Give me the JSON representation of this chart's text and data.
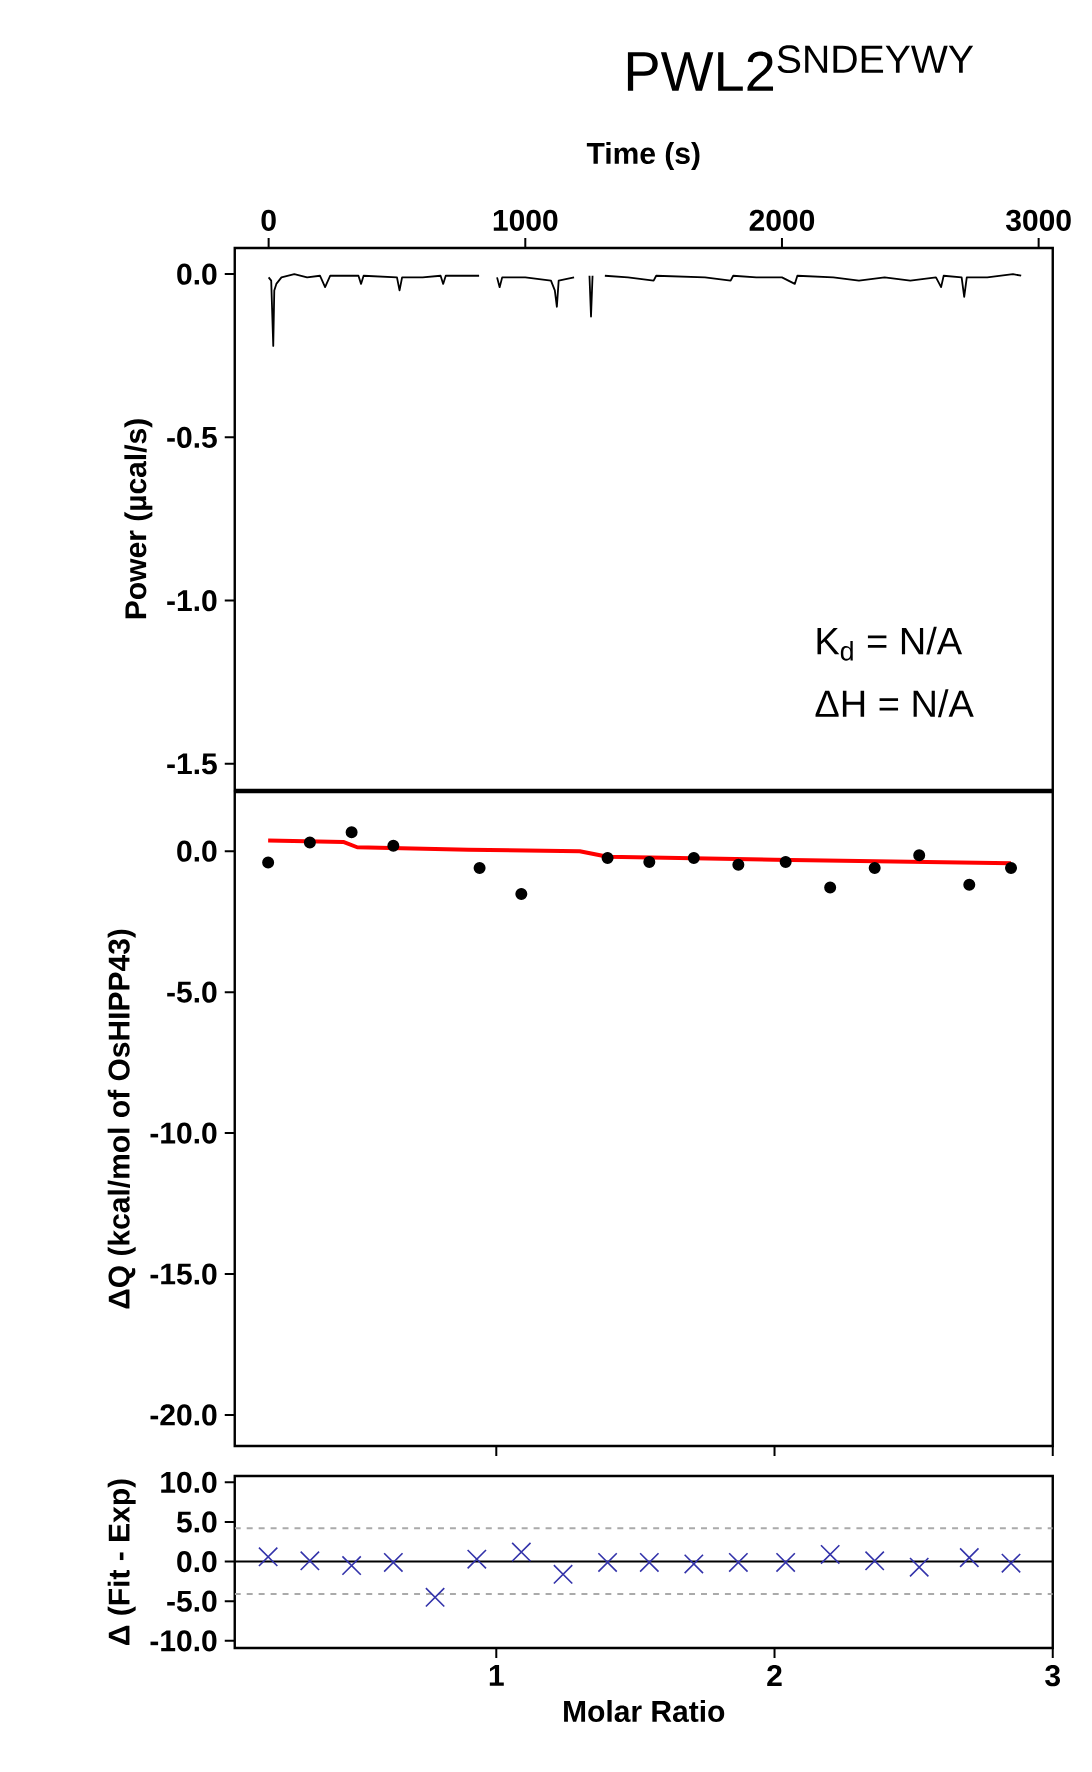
{
  "chart_data": [
    {
      "type": "line",
      "title": "PWL2$^{SNDEYWY}$",
      "xlabel": "Time (s)",
      "ylabel": "Power (µcal/s)",
      "xlim": [
        -132,
        3055
      ],
      "ylim": [
        -1.58,
        0.08
      ],
      "xticks": [
        0,
        1000,
        2000,
        3000
      ],
      "yticks": [
        {
          "value": 0,
          "label": "0.0"
        },
        {
          "value": -0.5,
          "label": "-0.5"
        },
        {
          "value": -1.0,
          "label": "-1.0"
        },
        {
          "value": -1.5,
          "label": "-1.5"
        }
      ],
      "annotations": [
        "K$_{d}$ = N/A",
        "ΔH = N/A"
      ],
      "series": [
        {
          "color": "#000000",
          "x": [
            0,
            10,
            18,
            22,
            30,
            50,
            100,
            150,
            200,
            220,
            240,
            350,
            360,
            370,
            500,
            510,
            520,
            600,
            670,
            680,
            690,
            820,
            830,
            890,
            900,
            910,
            1000,
            1100,
            1115,
            1123,
            1130,
            1190,
            1200,
            1250,
            1256,
            1262,
            1270,
            1310,
            1400,
            1500,
            1510,
            1700,
            1800,
            1810,
            1900,
            2000,
            2050,
            2060,
            2200,
            2300,
            2400,
            2500,
            2600,
            2620,
            2630,
            2700,
            2710,
            2720,
            2800,
            2900,
            2932
          ],
          "values": [
            -0.01,
            -0.02,
            -0.22,
            -0.05,
            -0.03,
            -0.01,
            0.0,
            -0.01,
            -0.005,
            -0.04,
            -0.005,
            -0.005,
            -0.03,
            -0.005,
            -0.01,
            -0.05,
            -0.01,
            -0.01,
            -0.005,
            -0.03,
            -0.005,
            -0.005,
            null,
            -0.01,
            -0.04,
            -0.01,
            -0.01,
            -0.02,
            -0.05,
            -0.1,
            -0.02,
            -0.01,
            null,
            -0.005,
            -0.13,
            -0.005,
            null,
            -0.005,
            -0.01,
            -0.02,
            -0.005,
            -0.01,
            -0.02,
            -0.005,
            -0.01,
            -0.01,
            -0.03,
            -0.005,
            -0.01,
            -0.02,
            -0.01,
            -0.02,
            -0.01,
            -0.04,
            -0.005,
            -0.01,
            -0.07,
            -0.01,
            -0.01,
            0.0,
            -0.005
          ]
        }
      ]
    },
    {
      "type": "scatter",
      "ylabel": "ΔQ (kcal/mol of OsHIPP43)",
      "tick_labels": "y",
      "xlim": [
        0.06,
        3.0
      ],
      "ylim": [
        -21.1,
        2.1
      ],
      "xticks": [
        1,
        2,
        3
      ],
      "yticks": [
        {
          "value": 0,
          "label": "0.0"
        },
        {
          "value": -5,
          "label": "-5.0"
        },
        {
          "value": -10,
          "label": "-10.0"
        },
        {
          "value": -15,
          "label": "-15.0"
        },
        {
          "value": -20,
          "label": "-20.0"
        }
      ],
      "series": [
        {
          "color": "#000000",
          "marker": "circle",
          "x": [
            0.18,
            0.33,
            0.48,
            0.63,
            0.94,
            1.09,
            1.4,
            1.55,
            1.71,
            1.87,
            2.04,
            2.2,
            2.36,
            2.52,
            2.7,
            2.85
          ],
          "values": [
            -0.4,
            0.31,
            0.67,
            0.19,
            -0.6,
            -1.52,
            -0.24,
            -0.38,
            -0.24,
            -0.48,
            -0.38,
            -1.29,
            -0.6,
            -0.14,
            -1.19,
            -0.6
          ]
        },
        {
          "type": "line",
          "marker": "none",
          "color": "#ff0000",
          "x": [
            0.18,
            0.45,
            0.5,
            0.9,
            1.3,
            1.4,
            2.0,
            2.85
          ],
          "values": [
            0.38,
            0.33,
            0.14,
            0.05,
            0.0,
            -0.2,
            -0.3,
            -0.43
          ]
        }
      ]
    },
    {
      "type": "scatter",
      "xlabel": "Molar Ratio",
      "ylabel": "Δ (Fit - Exp)",
      "marker": "cross",
      "xlim": [
        0.06,
        3.0
      ],
      "ylim": [
        -10.9,
        10.8
      ],
      "xticks": [
        1,
        2,
        3
      ],
      "yticks": [
        {
          "value": 10,
          "label": "10.0"
        },
        {
          "value": 5,
          "label": "5.0"
        },
        {
          "value": 0,
          "label": "0.0"
        },
        {
          "value": -5,
          "label": "-5.0"
        },
        {
          "value": -10,
          "label": "-10.0"
        }
      ],
      "ref_lines": [
        {
          "axis": "y",
          "value": 0,
          "color": "#000000",
          "line_style": "solid"
        },
        {
          "axis": "y",
          "value": 4.2,
          "color": "#aaaaaa",
          "line_style": "dashed"
        },
        {
          "axis": "y",
          "value": -4.1,
          "color": "#aaaaaa",
          "line_style": "dashed"
        }
      ],
      "series": [
        {
          "color": "#3333aa",
          "x": [
            0.18,
            0.33,
            0.48,
            0.63,
            0.78,
            0.93,
            1.09,
            1.24,
            1.4,
            1.55,
            1.71,
            1.87,
            2.04,
            2.2,
            2.36,
            2.52,
            2.7,
            2.85
          ],
          "values": [
            0.6,
            0.1,
            -0.5,
            -0.1,
            -4.5,
            0.3,
            1.2,
            -1.6,
            -0.1,
            -0.1,
            -0.3,
            -0.1,
            -0.1,
            0.9,
            0.1,
            -0.7,
            0.5,
            -0.2
          ]
        }
      ]
    }
  ]
}
